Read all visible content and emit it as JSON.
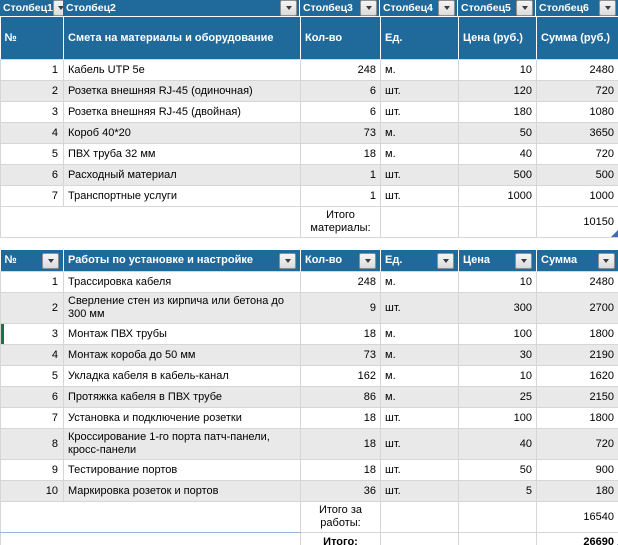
{
  "colors": {
    "header_blue": "#20699B",
    "band_gray": "#E9E9E9",
    "marker_green": "#1E7145",
    "handle_blue": "#3F6DB5",
    "subtotal_divider_blue": "#9AB5D9"
  },
  "filter_row": {
    "columns": [
      "Столбец1",
      "Столбец2",
      "Столбец3",
      "Столбец4",
      "Столбец5",
      "Столбец6"
    ]
  },
  "materials_table": {
    "header": {
      "num": "№",
      "name": "Смета на материалы и оборудование",
      "qty": "Кол-во",
      "unit": "Ед.",
      "price": "Цена (руб.)",
      "sum": "Сумма (руб.)"
    },
    "rows": [
      {
        "n": "1",
        "name": "Кабель UTP 5e",
        "qty": "248",
        "unit": "м.",
        "price": "10",
        "sum": "2480"
      },
      {
        "n": "2",
        "name": "Розетка внешняя RJ-45 (одиночная)",
        "qty": "6",
        "unit": "шт.",
        "price": "120",
        "sum": "720"
      },
      {
        "n": "3",
        "name": "Розетка внешняя RJ-45 (двойная)",
        "qty": "6",
        "unit": "шт.",
        "price": "180",
        "sum": "1080"
      },
      {
        "n": "4",
        "name": "Короб 40*20",
        "qty": "73",
        "unit": "м.",
        "price": "50",
        "sum": "3650"
      },
      {
        "n": "5",
        "name": "ПВХ труба 32 мм",
        "qty": "18",
        "unit": "м.",
        "price": "40",
        "sum": "720"
      },
      {
        "n": "6",
        "name": "Расходный материал",
        "qty": "1",
        "unit": "шт.",
        "price": "500",
        "sum": "500"
      },
      {
        "n": "7",
        "name": "Транспортные услуги",
        "qty": "1",
        "unit": "шт.",
        "price": "1000",
        "sum": "1000"
      }
    ],
    "total": {
      "label": "Итого материалы:",
      "value": "10150"
    }
  },
  "works_table": {
    "header": {
      "num": "№",
      "name": "Работы по установке и настройке",
      "qty": "Кол-во",
      "unit": "Ед.",
      "price": "Цена",
      "sum": "Сумма"
    },
    "rows": [
      {
        "n": "1",
        "name": "Трассировка кабеля",
        "qty": "248",
        "unit": "м.",
        "price": "10",
        "sum": "2480"
      },
      {
        "n": "2",
        "name": "Сверление стен из кирпича или бетона до 300 мм",
        "qty": "9",
        "unit": "шт.",
        "price": "300",
        "sum": "2700"
      },
      {
        "n": "3",
        "name": "Монтаж ПВХ трубы",
        "qty": "18",
        "unit": "м.",
        "price": "100",
        "sum": "1800"
      },
      {
        "n": "4",
        "name": "Монтаж короба до 50 мм",
        "qty": "73",
        "unit": "м.",
        "price": "30",
        "sum": "2190"
      },
      {
        "n": "5",
        "name": "Укладка кабеля в кабель-канал",
        "qty": "162",
        "unit": "м.",
        "price": "10",
        "sum": "1620"
      },
      {
        "n": "6",
        "name": "Протяжка кабеля в ПВХ трубе",
        "qty": "86",
        "unit": "м.",
        "price": "25",
        "sum": "2150"
      },
      {
        "n": "7",
        "name": "Установка и подключение розетки",
        "qty": "18",
        "unit": "шт.",
        "price": "100",
        "sum": "1800"
      },
      {
        "n": "8",
        "name": "Кроссирование 1-го порта патч-панели, кросс-панели",
        "qty": "18",
        "unit": "шт.",
        "price": "40",
        "sum": "720"
      },
      {
        "n": "9",
        "name": "Тестирование портов",
        "qty": "18",
        "unit": "шт.",
        "price": "50",
        "sum": "900"
      },
      {
        "n": "10",
        "name": "Маркировка розеток и портов",
        "qty": "36",
        "unit": "шт.",
        "price": "5",
        "sum": "180"
      }
    ],
    "subtotal": {
      "label": "Итого за работы:",
      "value": "16540"
    },
    "grand_total": {
      "label": "Итого:",
      "value": "26690"
    }
  }
}
